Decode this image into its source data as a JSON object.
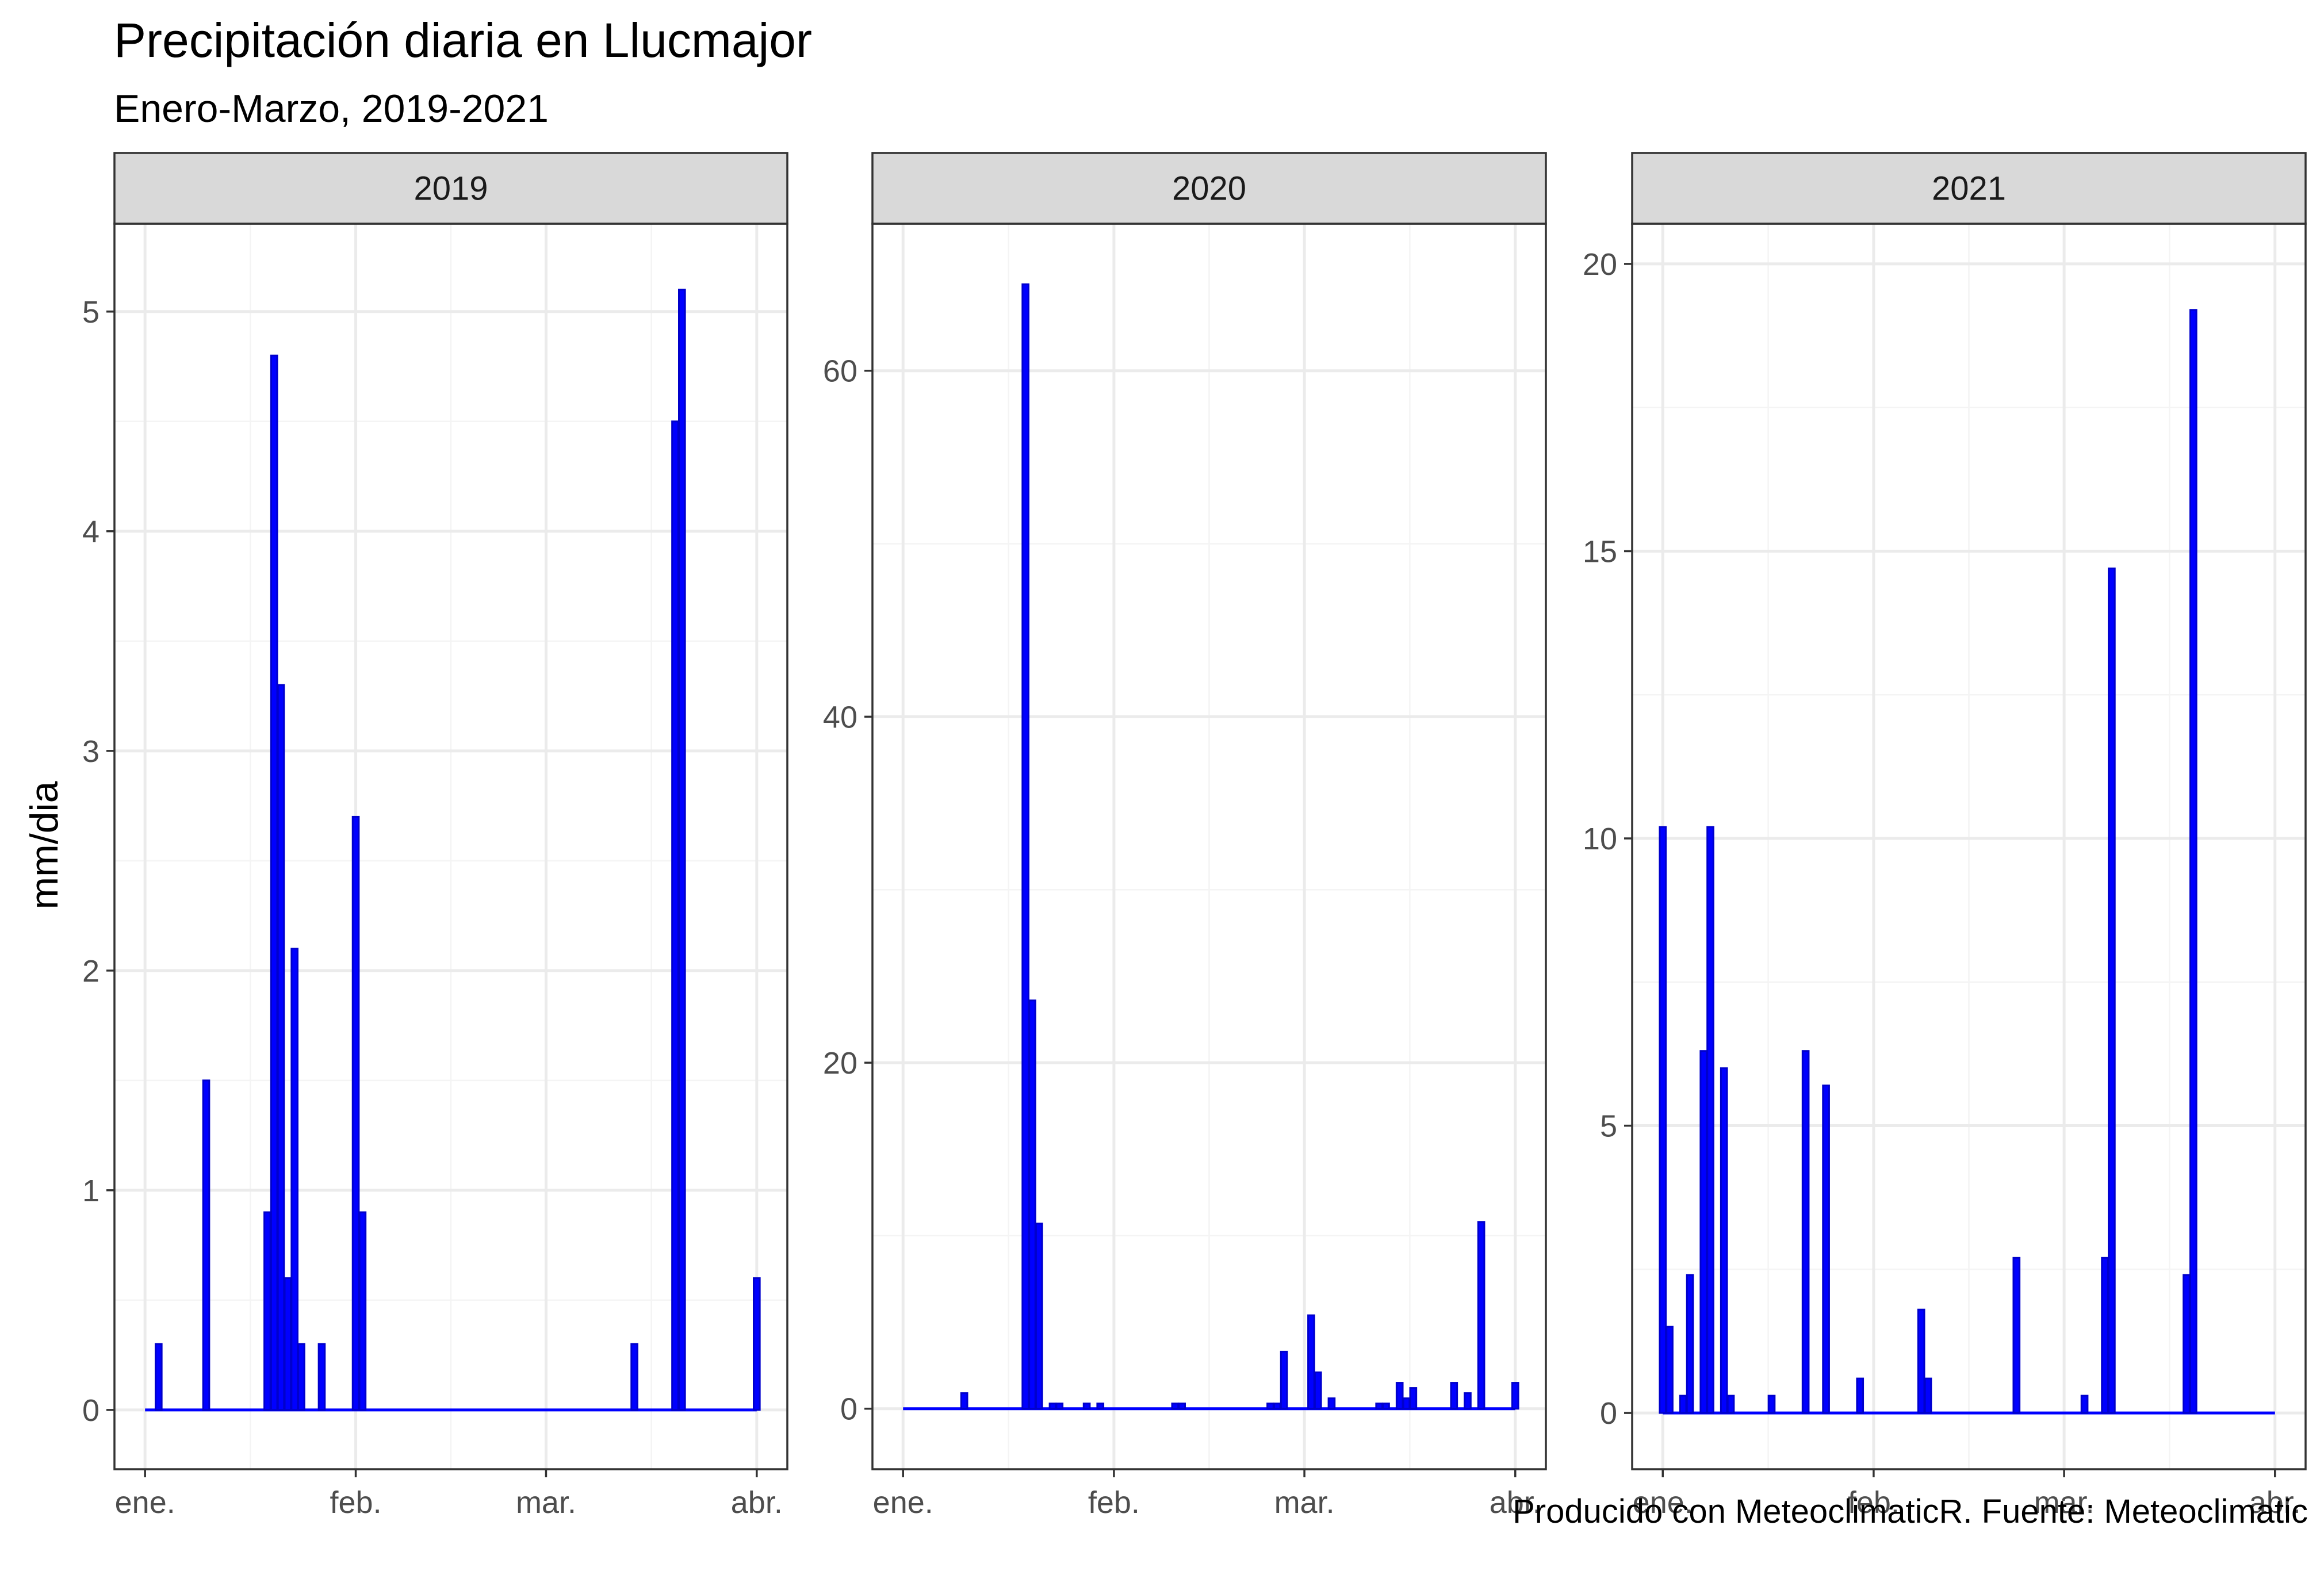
{
  "title": "Precipitación diaria en Llucmajor",
  "subtitle": "Enero-Marzo, 2019-2021",
  "caption": "Producido con MeteoclimaticR. Fuente: Meteoclimatic",
  "colors": {
    "bar_fill": "#0000ff",
    "bar_outline": "#0000cc",
    "strip_fill": "#d9d9d9",
    "grid_major": "#ebebeb",
    "grid_minor": "#f4f4f4",
    "panel_border": "#333333"
  },
  "chart_data": {
    "type": "bar",
    "ylabel": "mm/dia",
    "xlabel": "",
    "x_ticks": [
      "ene.",
      "feb.",
      "mar.",
      "abr."
    ],
    "x_tick_days": [
      0,
      31,
      59,
      90
    ],
    "facets": [
      {
        "label": "2019",
        "ylim": [
          -0.27,
          5.4
        ],
        "y_ticks": [
          0,
          1,
          2,
          3,
          4,
          5
        ],
        "y_tick_labels": [
          "0",
          "1",
          "2",
          "3",
          "4",
          "5"
        ],
        "days": [
          2,
          9,
          18,
          19,
          20,
          21,
          22,
          23,
          26,
          31,
          32,
          72,
          78,
          79,
          90
        ],
        "dates": [
          "2019-01-03",
          "2019-01-10",
          "2019-01-19",
          "2019-01-20",
          "2019-01-21",
          "2019-01-22",
          "2019-01-23",
          "2019-01-24",
          "2019-01-27",
          "2019-02-01",
          "2019-02-02",
          "2019-03-14",
          "2019-03-20",
          "2019-03-21",
          "2019-04-01"
        ],
        "values": [
          0.3,
          1.5,
          0.9,
          4.8,
          3.3,
          0.6,
          2.1,
          0.3,
          0.3,
          2.7,
          0.9,
          0.3,
          4.5,
          5.1,
          0.6
        ]
      },
      {
        "label": "2020",
        "ylim": [
          -3.5,
          68.5
        ],
        "y_ticks": [
          0,
          20,
          40,
          60
        ],
        "y_tick_labels": [
          "0",
          "20",
          "40",
          "60"
        ],
        "days": [
          9,
          18,
          19,
          20,
          22,
          23,
          27,
          29,
          40,
          41,
          54,
          55,
          56,
          60,
          61,
          63,
          70,
          71,
          73,
          74,
          75,
          81,
          83,
          85,
          90
        ],
        "dates": [
          "2020-01-10",
          "2020-01-19",
          "2020-01-20",
          "2020-01-21",
          "2020-01-23",
          "2020-01-24",
          "2020-01-28",
          "2020-01-30",
          "2020-02-10",
          "2020-02-11",
          "2020-02-24",
          "2020-02-25",
          "2020-02-26",
          "2020-03-01",
          "2020-03-02",
          "2020-03-04",
          "2020-03-11",
          "2020-03-12",
          "2020-03-14",
          "2020-03-15",
          "2020-03-16",
          "2020-03-22",
          "2020-03-24",
          "2020-03-26",
          "2020-03-31"
        ],
        "values": [
          0.9,
          65.0,
          23.6,
          10.7,
          0.3,
          0.3,
          0.3,
          0.3,
          0.3,
          0.3,
          0.3,
          0.3,
          3.3,
          5.4,
          2.1,
          0.6,
          0.3,
          0.3,
          1.5,
          0.6,
          1.2,
          1.5,
          0.9,
          10.8,
          1.5
        ]
      },
      {
        "label": "2021",
        "ylim": [
          -0.98,
          20.7
        ],
        "y_ticks": [
          0,
          5,
          10,
          15,
          20
        ],
        "y_tick_labels": [
          "0",
          "5",
          "10",
          "15",
          "20"
        ],
        "days": [
          0,
          1,
          3,
          4,
          6,
          7,
          9,
          10,
          16,
          21,
          24,
          29,
          38,
          39,
          52,
          62,
          65,
          66,
          77,
          78
        ],
        "dates": [
          "2021-01-01",
          "2021-01-02",
          "2021-01-04",
          "2021-01-05",
          "2021-01-07",
          "2021-01-08",
          "2021-01-10",
          "2021-01-11",
          "2021-01-17",
          "2021-01-22",
          "2021-01-25",
          "2021-01-30",
          "2021-02-08",
          "2021-02-09",
          "2021-02-22",
          "2021-03-04",
          "2021-03-07",
          "2021-03-08",
          "2021-03-19",
          "2021-03-20"
        ],
        "values": [
          10.2,
          1.5,
          0.3,
          2.4,
          6.3,
          10.2,
          6.0,
          0.3,
          0.3,
          6.3,
          5.7,
          0.6,
          1.8,
          0.6,
          2.7,
          0.3,
          2.7,
          14.7,
          2.4,
          19.2
        ]
      }
    ]
  }
}
